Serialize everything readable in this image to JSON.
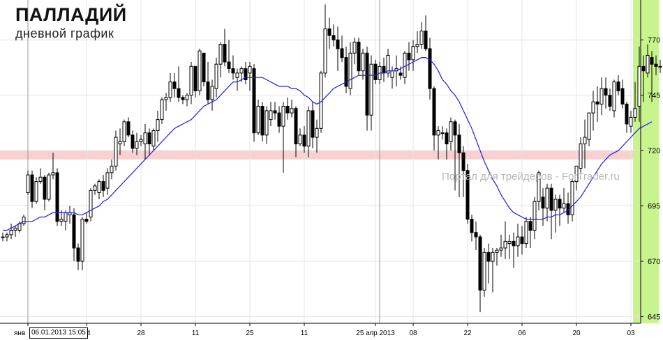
{
  "title": "ПАЛЛАДИЙ",
  "subtitle": "дневной график",
  "watermark": "Портал для трейдеров - ForTrader.ru",
  "cursor_label": "06.01.2013 15:05",
  "colors": {
    "background": "#ffffff",
    "grid": "#e4e4e4",
    "candle": "#000000",
    "moving_average": "#1a1af0",
    "support_band": "#f8c8c8",
    "highlight": "#c8f48e"
  },
  "chart_data": {
    "type": "candlestick",
    "instrument": "ПАЛЛАДИЙ",
    "timeframe": "дневной график",
    "x_tick_labels": [
      "янв",
      "14",
      "28",
      "11",
      "25",
      "11",
      "25 апр 2013",
      "08",
      "22",
      "06",
      "20",
      "03"
    ],
    "y_tick_labels": [
      645,
      670,
      695,
      720,
      745,
      770
    ],
    "ylim": [
      642,
      788
    ],
    "grid": true,
    "support_zone": [
      716,
      720
    ],
    "ohlc": [
      [
        681,
        683,
        679,
        681
      ],
      [
        681,
        683,
        679,
        682
      ],
      [
        682,
        687,
        680,
        684
      ],
      [
        684,
        686,
        681,
        685
      ],
      [
        684,
        688,
        683,
        687
      ],
      [
        687,
        691,
        686,
        690
      ],
      [
        701,
        711,
        700,
        709
      ],
      [
        709,
        711,
        694,
        697
      ],
      [
        697,
        708,
        696,
        706
      ],
      [
        706,
        712,
        705,
        708
      ],
      [
        708,
        709,
        693,
        698
      ],
      [
        698,
        710,
        697,
        709
      ],
      [
        709,
        719,
        707,
        710
      ],
      [
        710,
        712,
        686,
        688
      ],
      [
        688,
        693,
        686,
        689
      ],
      [
        688,
        693,
        684,
        692
      ],
      [
        691,
        695,
        687,
        692
      ],
      [
        691,
        694,
        670,
        676
      ],
      [
        676,
        678,
        666,
        670
      ],
      [
        670,
        690,
        666,
        689
      ],
      [
        689,
        692,
        687,
        688
      ],
      [
        690,
        703,
        688,
        702
      ],
      [
        702,
        705,
        700,
        704
      ],
      [
        701,
        707,
        698,
        706
      ],
      [
        706,
        709,
        699,
        702
      ],
      [
        703,
        712,
        700,
        710
      ],
      [
        710,
        716,
        707,
        713
      ],
      [
        713,
        729,
        711,
        726
      ],
      [
        723,
        730,
        718,
        724
      ],
      [
        724,
        734,
        722,
        733
      ],
      [
        733,
        735,
        726,
        727
      ],
      [
        727,
        729,
        719,
        721
      ],
      [
        721,
        728,
        718,
        724
      ],
      [
        724,
        727,
        722,
        725
      ],
      [
        723,
        732,
        716,
        728
      ],
      [
        728,
        730,
        718,
        723
      ],
      [
        722,
        730,
        720,
        729
      ],
      [
        729,
        738,
        724,
        734
      ],
      [
        734,
        744,
        732,
        743
      ],
      [
        743,
        746,
        738,
        744
      ],
      [
        744,
        755,
        742,
        751
      ],
      [
        751,
        755,
        744,
        748
      ],
      [
        748,
        758,
        742,
        744
      ],
      [
        744,
        745,
        741,
        743
      ],
      [
        743,
        746,
        740,
        745
      ],
      [
        745,
        760,
        741,
        758
      ],
      [
        758,
        758,
        744,
        747
      ],
      [
        747,
        766,
        745,
        765
      ],
      [
        764,
        764,
        749,
        751
      ],
      [
        751,
        760,
        741,
        743
      ],
      [
        743,
        752,
        738,
        749
      ],
      [
        748,
        762,
        744,
        759
      ],
      [
        759,
        769,
        753,
        768
      ],
      [
        768,
        775,
        758,
        760
      ],
      [
        760,
        770,
        755,
        757
      ],
      [
        757,
        763,
        752,
        755
      ],
      [
        753,
        757,
        747,
        755
      ],
      [
        755,
        758,
        751,
        757
      ],
      [
        757,
        760,
        750,
        752
      ],
      [
        755,
        760,
        747,
        758
      ],
      [
        757,
        759,
        724,
        728
      ],
      [
        728,
        743,
        727,
        740
      ],
      [
        740,
        742,
        724,
        727
      ],
      [
        727,
        740,
        723,
        738
      ],
      [
        734,
        742,
        731,
        738
      ],
      [
        738,
        742,
        734,
        737
      ],
      [
        737,
        740,
        728,
        731
      ],
      [
        731,
        742,
        710,
        740
      ],
      [
        740,
        744,
        734,
        737
      ],
      [
        737,
        743,
        735,
        739
      ],
      [
        739,
        740,
        717,
        723
      ],
      [
        723,
        730,
        722,
        727
      ],
      [
        727,
        731,
        719,
        722
      ],
      [
        722,
        740,
        717,
        738
      ],
      [
        738,
        742,
        721,
        726
      ],
      [
        726,
        734,
        719,
        730
      ],
      [
        730,
        756,
        728,
        755
      ],
      [
        755,
        786,
        753,
        775
      ],
      [
        775,
        780,
        766,
        772
      ],
      [
        772,
        777,
        767,
        770
      ],
      [
        770,
        776,
        756,
        766
      ],
      [
        766,
        772,
        760,
        762
      ],
      [
        762,
        767,
        746,
        749
      ],
      [
        748,
        769,
        745,
        764
      ],
      [
        764,
        771,
        759,
        769
      ],
      [
        769,
        771,
        754,
        756
      ],
      [
        756,
        766,
        752,
        764
      ],
      [
        764,
        767,
        729,
        736
      ],
      [
        736,
        763,
        729,
        759
      ],
      [
        759,
        761,
        750,
        752
      ],
      [
        752,
        760,
        750,
        758
      ],
      [
        758,
        762,
        751,
        755
      ],
      [
        755,
        766,
        753,
        763
      ],
      [
        753,
        758,
        748,
        756
      ],
      [
        756,
        763,
        749,
        757
      ],
      [
        755,
        758,
        752,
        754
      ],
      [
        753,
        765,
        750,
        764
      ],
      [
        764,
        769,
        756,
        761
      ],
      [
        761,
        770,
        756,
        767
      ],
      [
        767,
        774,
        764,
        768
      ],
      [
        768,
        778,
        766,
        774
      ],
      [
        774,
        781,
        765,
        766
      ],
      [
        766,
        771,
        743,
        748
      ],
      [
        748,
        749,
        720,
        727
      ],
      [
        727,
        731,
        716,
        729
      ],
      [
        728,
        731,
        725,
        728
      ],
      [
        728,
        730,
        716,
        723
      ],
      [
        724,
        735,
        720,
        733
      ],
      [
        733,
        734,
        702,
        727
      ],
      [
        727,
        732,
        699,
        719
      ],
      [
        719,
        722,
        699,
        711
      ],
      [
        711,
        714,
        687,
        689
      ],
      [
        689,
        691,
        679,
        683
      ],
      [
        683,
        688,
        675,
        681
      ],
      [
        681,
        682,
        647,
        657
      ],
      [
        657,
        676,
        654,
        674
      ],
      [
        674,
        678,
        660,
        670
      ],
      [
        670,
        676,
        656,
        674
      ],
      [
        674,
        676,
        668,
        675
      ],
      [
        675,
        682,
        672,
        676
      ],
      [
        676,
        688,
        671,
        679
      ],
      [
        678,
        682,
        671,
        679
      ],
      [
        679,
        683,
        667,
        677
      ],
      [
        677,
        687,
        672,
        681
      ],
      [
        681,
        686,
        673,
        678
      ],
      [
        678,
        690,
        676,
        688
      ],
      [
        688,
        690,
        676,
        684
      ],
      [
        684,
        699,
        680,
        697
      ],
      [
        697,
        711,
        693,
        710
      ],
      [
        699,
        703,
        686,
        694
      ],
      [
        694,
        705,
        688,
        703
      ],
      [
        703,
        705,
        680,
        693
      ],
      [
        693,
        700,
        683,
        698
      ],
      [
        698,
        700,
        686,
        694
      ],
      [
        694,
        703,
        692,
        696
      ],
      [
        696,
        701,
        687,
        691
      ],
      [
        691,
        707,
        688,
        706
      ],
      [
        706,
        713,
        702,
        713
      ],
      [
        712,
        726,
        710,
        723
      ],
      [
        723,
        734,
        712,
        726
      ],
      [
        725,
        737,
        722,
        737
      ],
      [
        737,
        747,
        729,
        742
      ],
      [
        742,
        749,
        733,
        741
      ],
      [
        741,
        753,
        736,
        748
      ],
      [
        748,
        753,
        739,
        745
      ],
      [
        745,
        748,
        738,
        740
      ],
      [
        738,
        752,
        735,
        751
      ],
      [
        751,
        754,
        745,
        747
      ],
      [
        748,
        752,
        739,
        741
      ],
      [
        741,
        742,
        728,
        732
      ],
      [
        731,
        738,
        728,
        735
      ],
      [
        735,
        751,
        733,
        739
      ],
      [
        740,
        767,
        733,
        758
      ],
      [
        758,
        763,
        742,
        756
      ],
      [
        755,
        768,
        753,
        763
      ],
      [
        762,
        765,
        742,
        759
      ],
      [
        759,
        763,
        754,
        758
      ],
      [
        758,
        761,
        755,
        758
      ]
    ],
    "series": [
      {
        "values": [
          684,
          684,
          685,
          686,
          687,
          688,
          688,
          688,
          689,
          690,
          690,
          691,
          692,
          692,
          692,
          692,
          692,
          692,
          691,
          691,
          692,
          693,
          694,
          695,
          697,
          698,
          700,
          702,
          704,
          706,
          708,
          710,
          712,
          714,
          716,
          718,
          720,
          722,
          724,
          726,
          728,
          730,
          731,
          732,
          733,
          734,
          736,
          738,
          740,
          741,
          742,
          743,
          745,
          747,
          749,
          751,
          751,
          752,
          753,
          753,
          753,
          753,
          753,
          752,
          751,
          750,
          749,
          749,
          749,
          748,
          748,
          747,
          745,
          744,
          742,
          741,
          742,
          744,
          746,
          748,
          749,
          750,
          751,
          752,
          753,
          754,
          754,
          754,
          754,
          754,
          755,
          755,
          756,
          756,
          756,
          757,
          758,
          759,
          760,
          761,
          762,
          762,
          761,
          759,
          756,
          752,
          750,
          747,
          745,
          742,
          738,
          734,
          730,
          725,
          720,
          715,
          711,
          707,
          704,
          700,
          697,
          694,
          692,
          691,
          690,
          689,
          689,
          689,
          689,
          689,
          690,
          690,
          691,
          691,
          692,
          693,
          695,
          697,
          699,
          702,
          705,
          708,
          711,
          714,
          716,
          718,
          719,
          720,
          722,
          724,
          726,
          728,
          730,
          731,
          732,
          733
        ]
      }
    ]
  }
}
